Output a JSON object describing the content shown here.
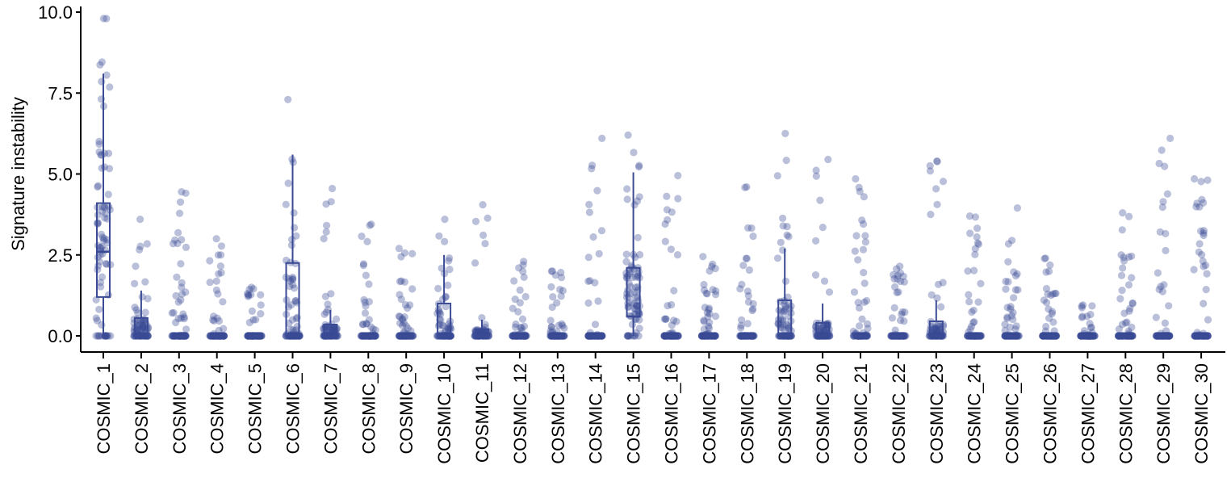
{
  "chart_data": {
    "type": "box",
    "title": "",
    "xlabel": "",
    "ylabel": "Signature instability",
    "ylim": [
      0,
      10
    ],
    "yticks": [
      "0.0",
      "2.5",
      "5.0",
      "7.5",
      "10.0"
    ],
    "grid": false,
    "legend": "none",
    "color": "#3a4a94",
    "points_per_category": 80,
    "categories": [
      "COSMIC_1",
      "COSMIC_2",
      "COSMIC_3",
      "COSMIC_4",
      "COSMIC_5",
      "COSMIC_6",
      "COSMIC_7",
      "COSMIC_8",
      "COSMIC_9",
      "COSMIC_10",
      "COSMIC_11",
      "COSMIC_12",
      "COSMIC_13",
      "COSMIC_14",
      "COSMIC_15",
      "COSMIC_16",
      "COSMIC_17",
      "COSMIC_18",
      "COSMIC_19",
      "COSMIC_20",
      "COSMIC_21",
      "COSMIC_22",
      "COSMIC_23",
      "COSMIC_24",
      "COSMIC_25",
      "COSMIC_26",
      "COSMIC_27",
      "COSMIC_28",
      "COSMIC_29",
      "COSMIC_30"
    ],
    "boxes": [
      {
        "q1": 1.2,
        "median": 2.6,
        "q3": 4.1,
        "whisker_low": 0.0,
        "whisker_high": 8.1,
        "max": 9.8
      },
      {
        "q1": 0.0,
        "median": 0.0,
        "q3": 0.55,
        "whisker_low": 0.0,
        "whisker_high": 1.4,
        "max": 3.6
      },
      {
        "q1": 0.0,
        "median": 0.0,
        "q3": 0.0,
        "whisker_low": 0.0,
        "whisker_high": 0.0,
        "max": 4.45
      },
      {
        "q1": 0.0,
        "median": 0.0,
        "q3": 0.0,
        "whisker_low": 0.0,
        "whisker_high": 0.0,
        "max": 3.0
      },
      {
        "q1": 0.0,
        "median": 0.0,
        "q3": 0.0,
        "whisker_low": 0.0,
        "whisker_high": 0.0,
        "max": 1.5
      },
      {
        "q1": 0.0,
        "median": 0.0,
        "q3": 2.25,
        "whisker_low": 0.0,
        "whisker_high": 5.6,
        "max": 7.3
      },
      {
        "q1": 0.0,
        "median": 0.0,
        "q3": 0.35,
        "whisker_low": 0.0,
        "whisker_high": 0.8,
        "max": 4.55
      },
      {
        "q1": 0.0,
        "median": 0.0,
        "q3": 0.0,
        "whisker_low": 0.0,
        "whisker_high": 0.0,
        "max": 3.45
      },
      {
        "q1": 0.0,
        "median": 0.0,
        "q3": 0.0,
        "whisker_low": 0.0,
        "whisker_high": 0.0,
        "max": 2.7
      },
      {
        "q1": 0.0,
        "median": 0.0,
        "q3": 1.0,
        "whisker_low": 0.0,
        "whisker_high": 2.5,
        "max": 3.6
      },
      {
        "q1": 0.0,
        "median": 0.0,
        "q3": 0.2,
        "whisker_low": 0.0,
        "whisker_high": 0.5,
        "max": 4.05
      },
      {
        "q1": 0.0,
        "median": 0.0,
        "q3": 0.0,
        "whisker_low": 0.0,
        "whisker_high": 0.0,
        "max": 2.3
      },
      {
        "q1": 0.0,
        "median": 0.0,
        "q3": 0.0,
        "whisker_low": 0.0,
        "whisker_high": 0.0,
        "max": 2.0
      },
      {
        "q1": 0.0,
        "median": 0.0,
        "q3": 0.0,
        "whisker_low": 0.0,
        "whisker_high": 0.0,
        "max": 6.1
      },
      {
        "q1": 0.6,
        "median": 0.6,
        "q3": 2.1,
        "whisker_low": 0.0,
        "whisker_high": 5.05,
        "max": 6.2
      },
      {
        "q1": 0.0,
        "median": 0.0,
        "q3": 0.0,
        "whisker_low": 0.0,
        "whisker_high": 0.0,
        "max": 4.95
      },
      {
        "q1": 0.0,
        "median": 0.0,
        "q3": 0.0,
        "whisker_low": 0.0,
        "whisker_high": 0.0,
        "max": 2.45
      },
      {
        "q1": 0.0,
        "median": 0.0,
        "q3": 0.0,
        "whisker_low": 0.0,
        "whisker_high": 0.0,
        "max": 4.6
      },
      {
        "q1": 0.0,
        "median": 0.0,
        "q3": 1.1,
        "whisker_low": 0.0,
        "whisker_high": 2.7,
        "max": 6.25
      },
      {
        "q1": 0.0,
        "median": 0.0,
        "q3": 0.4,
        "whisker_low": 0.0,
        "whisker_high": 1.0,
        "max": 5.45
      },
      {
        "q1": 0.0,
        "median": 0.0,
        "q3": 0.0,
        "whisker_low": 0.0,
        "whisker_high": 0.0,
        "max": 4.85
      },
      {
        "q1": 0.0,
        "median": 0.0,
        "q3": 0.0,
        "whisker_low": 0.0,
        "whisker_high": 0.0,
        "max": 2.15
      },
      {
        "q1": 0.0,
        "median": 0.0,
        "q3": 0.45,
        "whisker_low": 0.0,
        "whisker_high": 1.1,
        "max": 5.4
      },
      {
        "q1": 0.0,
        "median": 0.0,
        "q3": 0.0,
        "whisker_low": 0.0,
        "whisker_high": 0.0,
        "max": 3.7
      },
      {
        "q1": 0.0,
        "median": 0.0,
        "q3": 0.0,
        "whisker_low": 0.0,
        "whisker_high": 0.0,
        "max": 3.95
      },
      {
        "q1": 0.0,
        "median": 0.0,
        "q3": 0.0,
        "whisker_low": 0.0,
        "whisker_high": 0.0,
        "max": 2.4
      },
      {
        "q1": 0.0,
        "median": 0.0,
        "q3": 0.0,
        "whisker_low": 0.0,
        "whisker_high": 0.0,
        "max": 0.95
      },
      {
        "q1": 0.0,
        "median": 0.0,
        "q3": 0.0,
        "whisker_low": 0.0,
        "whisker_high": 0.0,
        "max": 3.8
      },
      {
        "q1": 0.0,
        "median": 0.0,
        "q3": 0.0,
        "whisker_low": 0.0,
        "whisker_high": 0.0,
        "max": 6.1
      },
      {
        "q1": 0.0,
        "median": 0.0,
        "q3": 0.0,
        "whisker_low": 0.0,
        "whisker_high": 0.0,
        "max": 4.85
      }
    ]
  }
}
